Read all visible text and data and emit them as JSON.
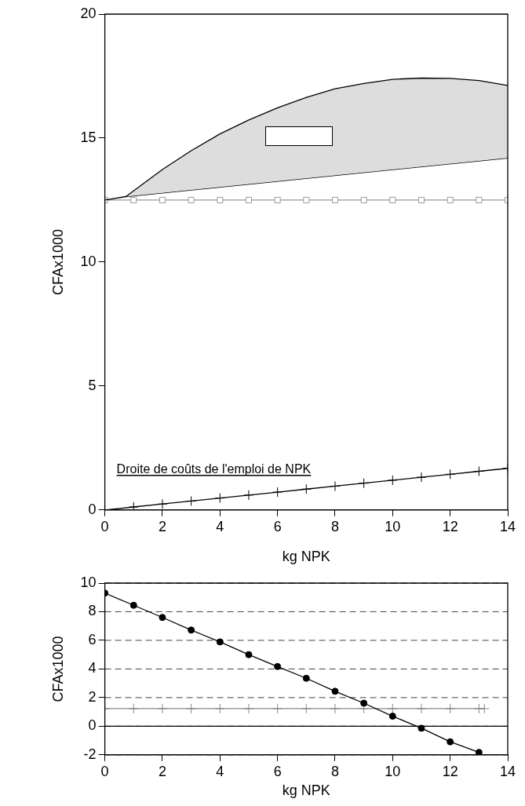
{
  "chart_data": [
    {
      "type": "line",
      "ylabel": "CFAx1000",
      "xlabel": "kg NPK",
      "xlim": [
        0,
        14
      ],
      "xticks": [
        0,
        2,
        4,
        6,
        8,
        10,
        12,
        14
      ],
      "ylim": [
        0,
        20
      ],
      "yticks": [
        0,
        5,
        10,
        15,
        20
      ],
      "grid": false,
      "legend": false,
      "series": [
        {
          "type": "line",
          "color": "#999999",
          "marker": "square",
          "x": [
            0,
            1,
            2,
            3,
            4,
            5,
            6,
            7,
            8,
            9,
            10,
            11,
            12,
            13,
            14
          ],
          "values": [
            12.5,
            12.5,
            12.5,
            12.5,
            12.5,
            12.5,
            12.5,
            12.5,
            12.5,
            12.5,
            12.5,
            12.5,
            12.5,
            12.5,
            12.5
          ]
        },
        {
          "type": "line",
          "color": "#000000",
          "marker": "none",
          "x": [
            0,
            0.73,
            14
          ],
          "values": [
            12.5,
            12.64,
            14.2
          ]
        },
        {
          "type": "area",
          "color": "#dddddd",
          "marker": "none",
          "x": [
            0.73,
            2,
            3,
            4,
            5,
            6,
            7,
            8,
            9,
            10,
            11,
            12,
            13,
            14
          ],
          "values": [
            12.64,
            13.73,
            14.49,
            15.17,
            15.73,
            16.22,
            16.64,
            16.99,
            17.2,
            17.37,
            17.42,
            17.41,
            17.32,
            17.12
          ]
        },
        {
          "type": "line",
          "color": "#000000",
          "marker": "cross",
          "name": "Droite de coûts de l'emploi de NPK",
          "x": [
            0,
            1,
            2,
            3,
            4,
            5,
            6,
            7,
            8,
            9,
            10,
            11,
            12,
            13,
            14
          ],
          "values": [
            0,
            0.12,
            0.24,
            0.36,
            0.48,
            0.6,
            0.72,
            0.84,
            0.96,
            1.08,
            1.2,
            1.32,
            1.44,
            1.56,
            1.68
          ]
        }
      ]
    },
    {
      "type": "line",
      "ylabel": "CFAx1000",
      "xlabel": "kg NPK",
      "xlim": [
        0,
        14
      ],
      "xticks": [
        0,
        2,
        4,
        6,
        8,
        10,
        12,
        14
      ],
      "ylim": [
        -2,
        10
      ],
      "yticks": [
        -2,
        0,
        2,
        4,
        6,
        8,
        10
      ],
      "grid": "y",
      "legend": false,
      "ref_lines": [
        {
          "axis": "y",
          "value": 0,
          "color": "#000000"
        }
      ],
      "series": [
        {
          "type": "line",
          "color": "#888888",
          "marker": "cross",
          "x": [
            0,
            1,
            2,
            3,
            4,
            5,
            6,
            7,
            8,
            9,
            10,
            11,
            12,
            13,
            13.19
          ],
          "values": [
            1.23,
            1.23,
            1.23,
            1.23,
            1.23,
            1.23,
            1.23,
            1.23,
            1.23,
            1.23,
            1.23,
            1.23,
            1.23,
            1.23,
            1.23
          ]
        },
        {
          "type": "line",
          "color": "#000000",
          "marker": "circle",
          "x": [
            0,
            1,
            2,
            3,
            4,
            5,
            6,
            7,
            8,
            9,
            10,
            11,
            12,
            13
          ],
          "values": [
            9.3,
            8.45,
            7.6,
            6.72,
            5.89,
            5.0,
            4.17,
            3.35,
            2.44,
            1.61,
            0.7,
            -0.14,
            -1.09,
            -1.83
          ]
        }
      ]
    }
  ]
}
